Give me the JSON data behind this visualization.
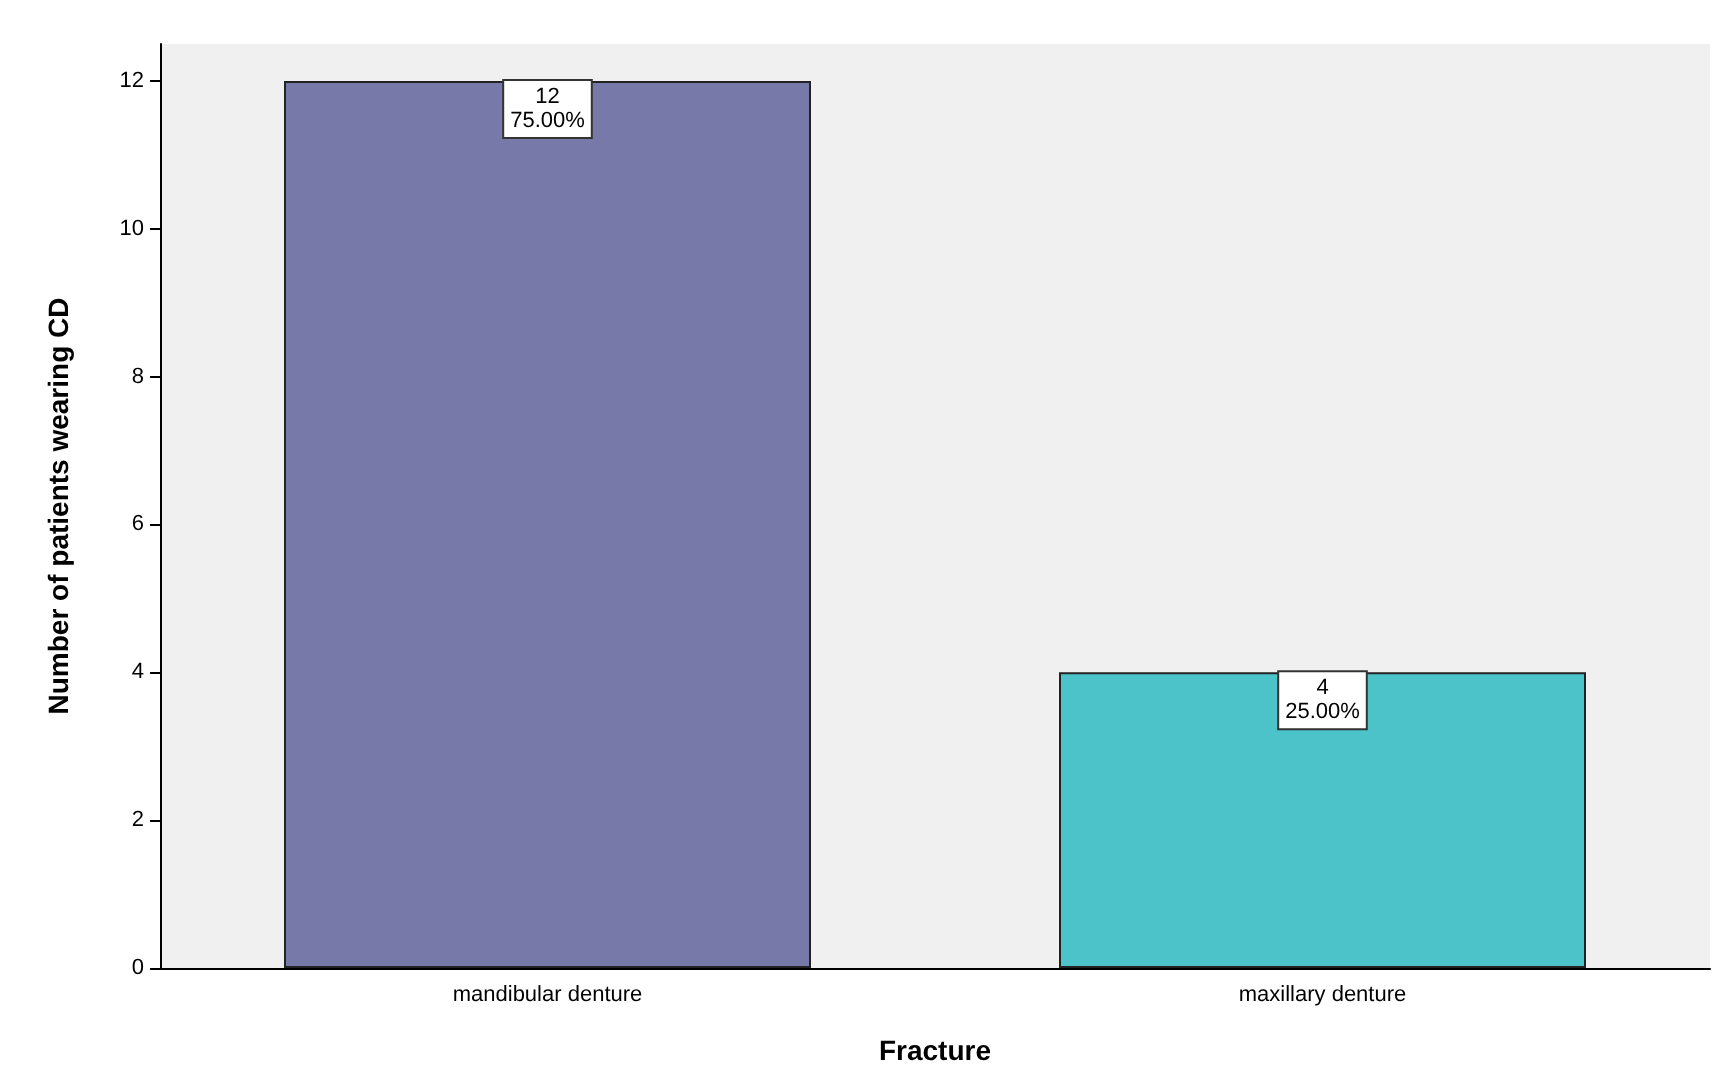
{
  "chart_data": {
    "type": "bar",
    "xlabel": "Fracture",
    "ylabel": "Number of patients wearing CD",
    "categories": [
      "mandibular denture",
      "maxillary denture"
    ],
    "values": [
      12,
      4
    ],
    "colors": [
      "#7779a8",
      "#4bc3c8"
    ],
    "value_labels": [
      "12\n75.00%",
      "4\n25.00%"
    ],
    "ylim": [
      0,
      12.5
    ],
    "yticks": [
      0,
      2,
      4,
      6,
      8,
      10,
      12
    ],
    "grid": false
  }
}
